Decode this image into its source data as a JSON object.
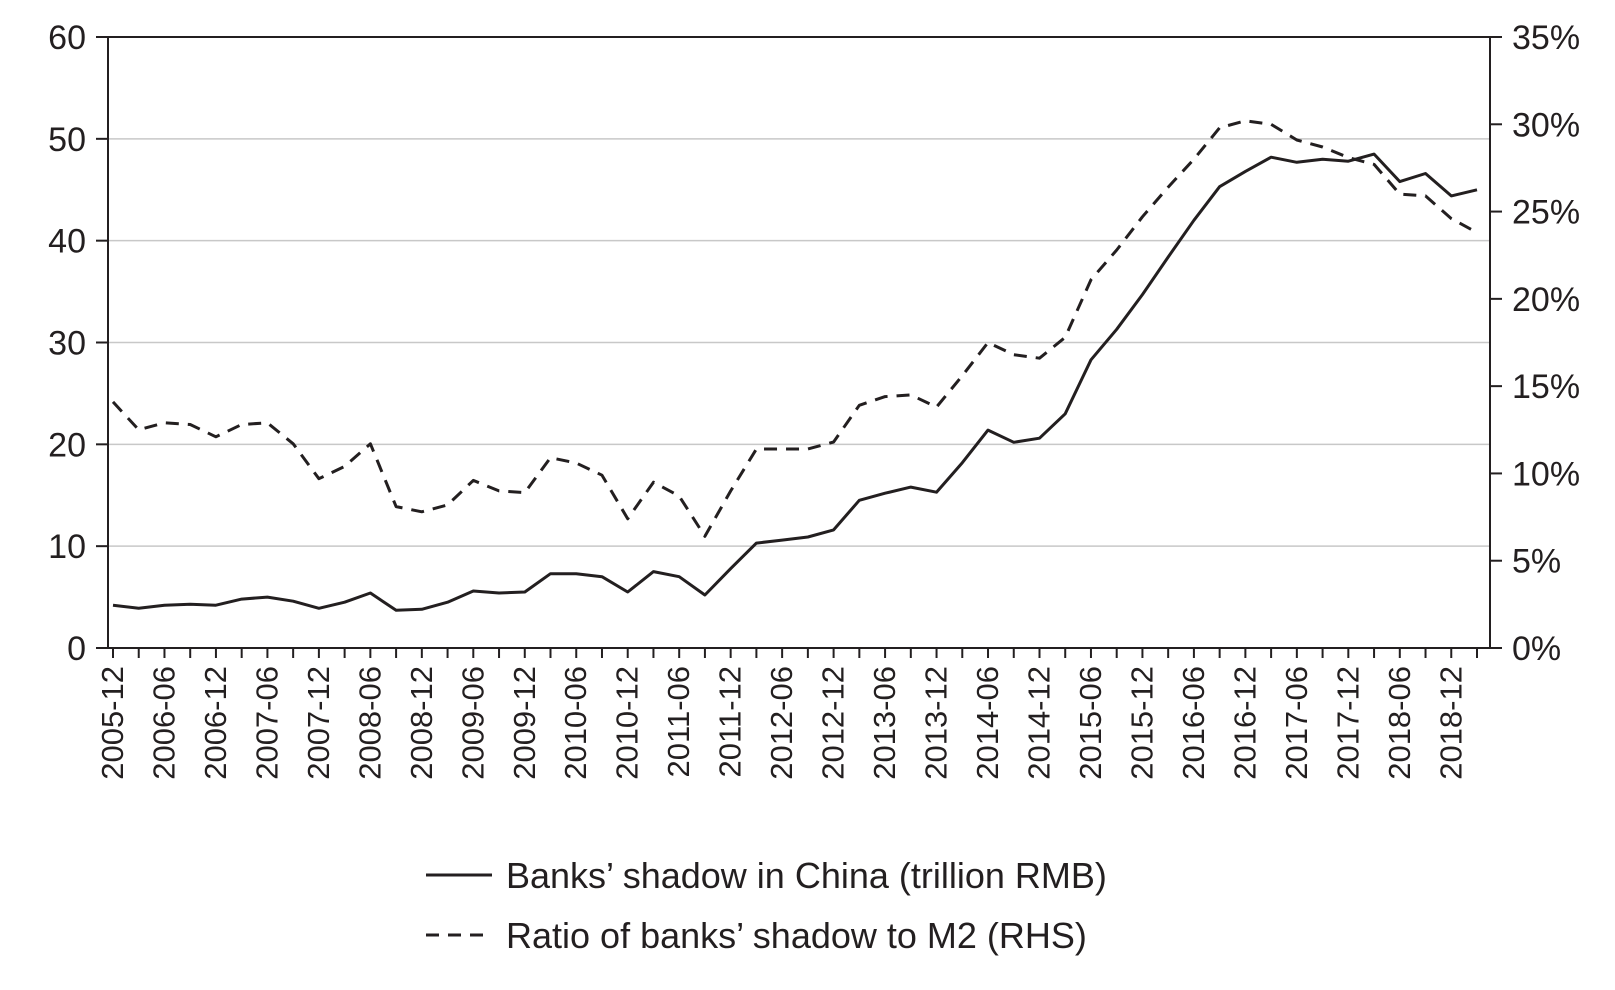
{
  "chart_data": {
    "type": "line",
    "title": "",
    "xlabel": "",
    "ylabel": "",
    "ylim": [
      0,
      60
    ],
    "y2lim": [
      0,
      0.35
    ],
    "y_ticks": [
      "0",
      "10",
      "20",
      "30",
      "40",
      "50",
      "60"
    ],
    "y2_ticks": [
      "0%",
      "5%",
      "10%",
      "15%",
      "20%",
      "25%",
      "30%",
      "35%"
    ],
    "x_tick_labels": [
      "2005-12",
      "2006-06",
      "2006-12",
      "2007-06",
      "2007-12",
      "2008-06",
      "2008-12",
      "2009-06",
      "2009-12",
      "2010-06",
      "2010-12",
      "2011-06",
      "2011-12",
      "2012-06",
      "2012-12",
      "2013-06",
      "2013-12",
      "2014-06",
      "2014-12",
      "2015-06",
      "2015-12",
      "2016-06",
      "2016-12",
      "2017-06",
      "2017-12",
      "2018-06",
      "2018-12"
    ],
    "x": [
      "2005-12",
      "2006-03",
      "2006-06",
      "2006-09",
      "2006-12",
      "2007-03",
      "2007-06",
      "2007-09",
      "2007-12",
      "2008-03",
      "2008-06",
      "2008-09",
      "2008-12",
      "2009-03",
      "2009-06",
      "2009-09",
      "2009-12",
      "2010-03",
      "2010-06",
      "2010-09",
      "2010-12",
      "2011-03",
      "2011-06",
      "2011-09",
      "2011-12",
      "2012-03",
      "2012-06",
      "2012-09",
      "2012-12",
      "2013-03",
      "2013-06",
      "2013-09",
      "2013-12",
      "2014-03",
      "2014-06",
      "2014-09",
      "2014-12",
      "2015-03",
      "2015-06",
      "2015-09",
      "2015-12",
      "2016-03",
      "2016-06",
      "2016-09",
      "2016-12",
      "2017-03",
      "2017-06",
      "2017-09",
      "2017-12",
      "2018-03",
      "2018-06",
      "2018-09",
      "2018-12",
      "2019-03"
    ],
    "grid": true,
    "legend_position": "bottom",
    "series": [
      {
        "name": "Banks’ shadow in China (trillion RMB)",
        "axis": "left",
        "style": "solid",
        "values": [
          4.2,
          3.9,
          4.2,
          4.3,
          4.2,
          4.8,
          5.0,
          4.6,
          3.9,
          4.5,
          5.4,
          3.7,
          3.8,
          4.5,
          5.6,
          5.4,
          5.5,
          7.3,
          7.3,
          7.0,
          5.5,
          7.5,
          7.0,
          5.2,
          7.8,
          10.3,
          10.6,
          10.9,
          11.6,
          14.5,
          15.2,
          15.8,
          15.3,
          18.2,
          21.4,
          20.2,
          20.6,
          23.0,
          28.3,
          31.3,
          34.7,
          38.4,
          42.0,
          45.3,
          46.8,
          48.2,
          47.7,
          48.0,
          47.8,
          48.5,
          45.8,
          46.6,
          44.4,
          45.0
        ]
      },
      {
        "name": "Ratio of banks’ shadow to M2 (RHS)",
        "axis": "right",
        "style": "dashed",
        "values": [
          0.141,
          0.125,
          0.129,
          0.128,
          0.121,
          0.128,
          0.129,
          0.117,
          0.097,
          0.104,
          0.117,
          0.081,
          0.078,
          0.082,
          0.096,
          0.09,
          0.089,
          0.109,
          0.106,
          0.099,
          0.074,
          0.095,
          0.087,
          0.064,
          0.09,
          0.114,
          0.114,
          0.114,
          0.118,
          0.139,
          0.144,
          0.145,
          0.138,
          0.156,
          0.175,
          0.168,
          0.166,
          0.178,
          0.211,
          0.228,
          0.247,
          0.264,
          0.28,
          0.298,
          0.302,
          0.3,
          0.291,
          0.287,
          0.281,
          0.277,
          0.26,
          0.259,
          0.246,
          0.238
        ]
      }
    ]
  },
  "colors": {
    "line": "#231f20",
    "grid": "#c8c8c8",
    "background": "#ffffff"
  }
}
